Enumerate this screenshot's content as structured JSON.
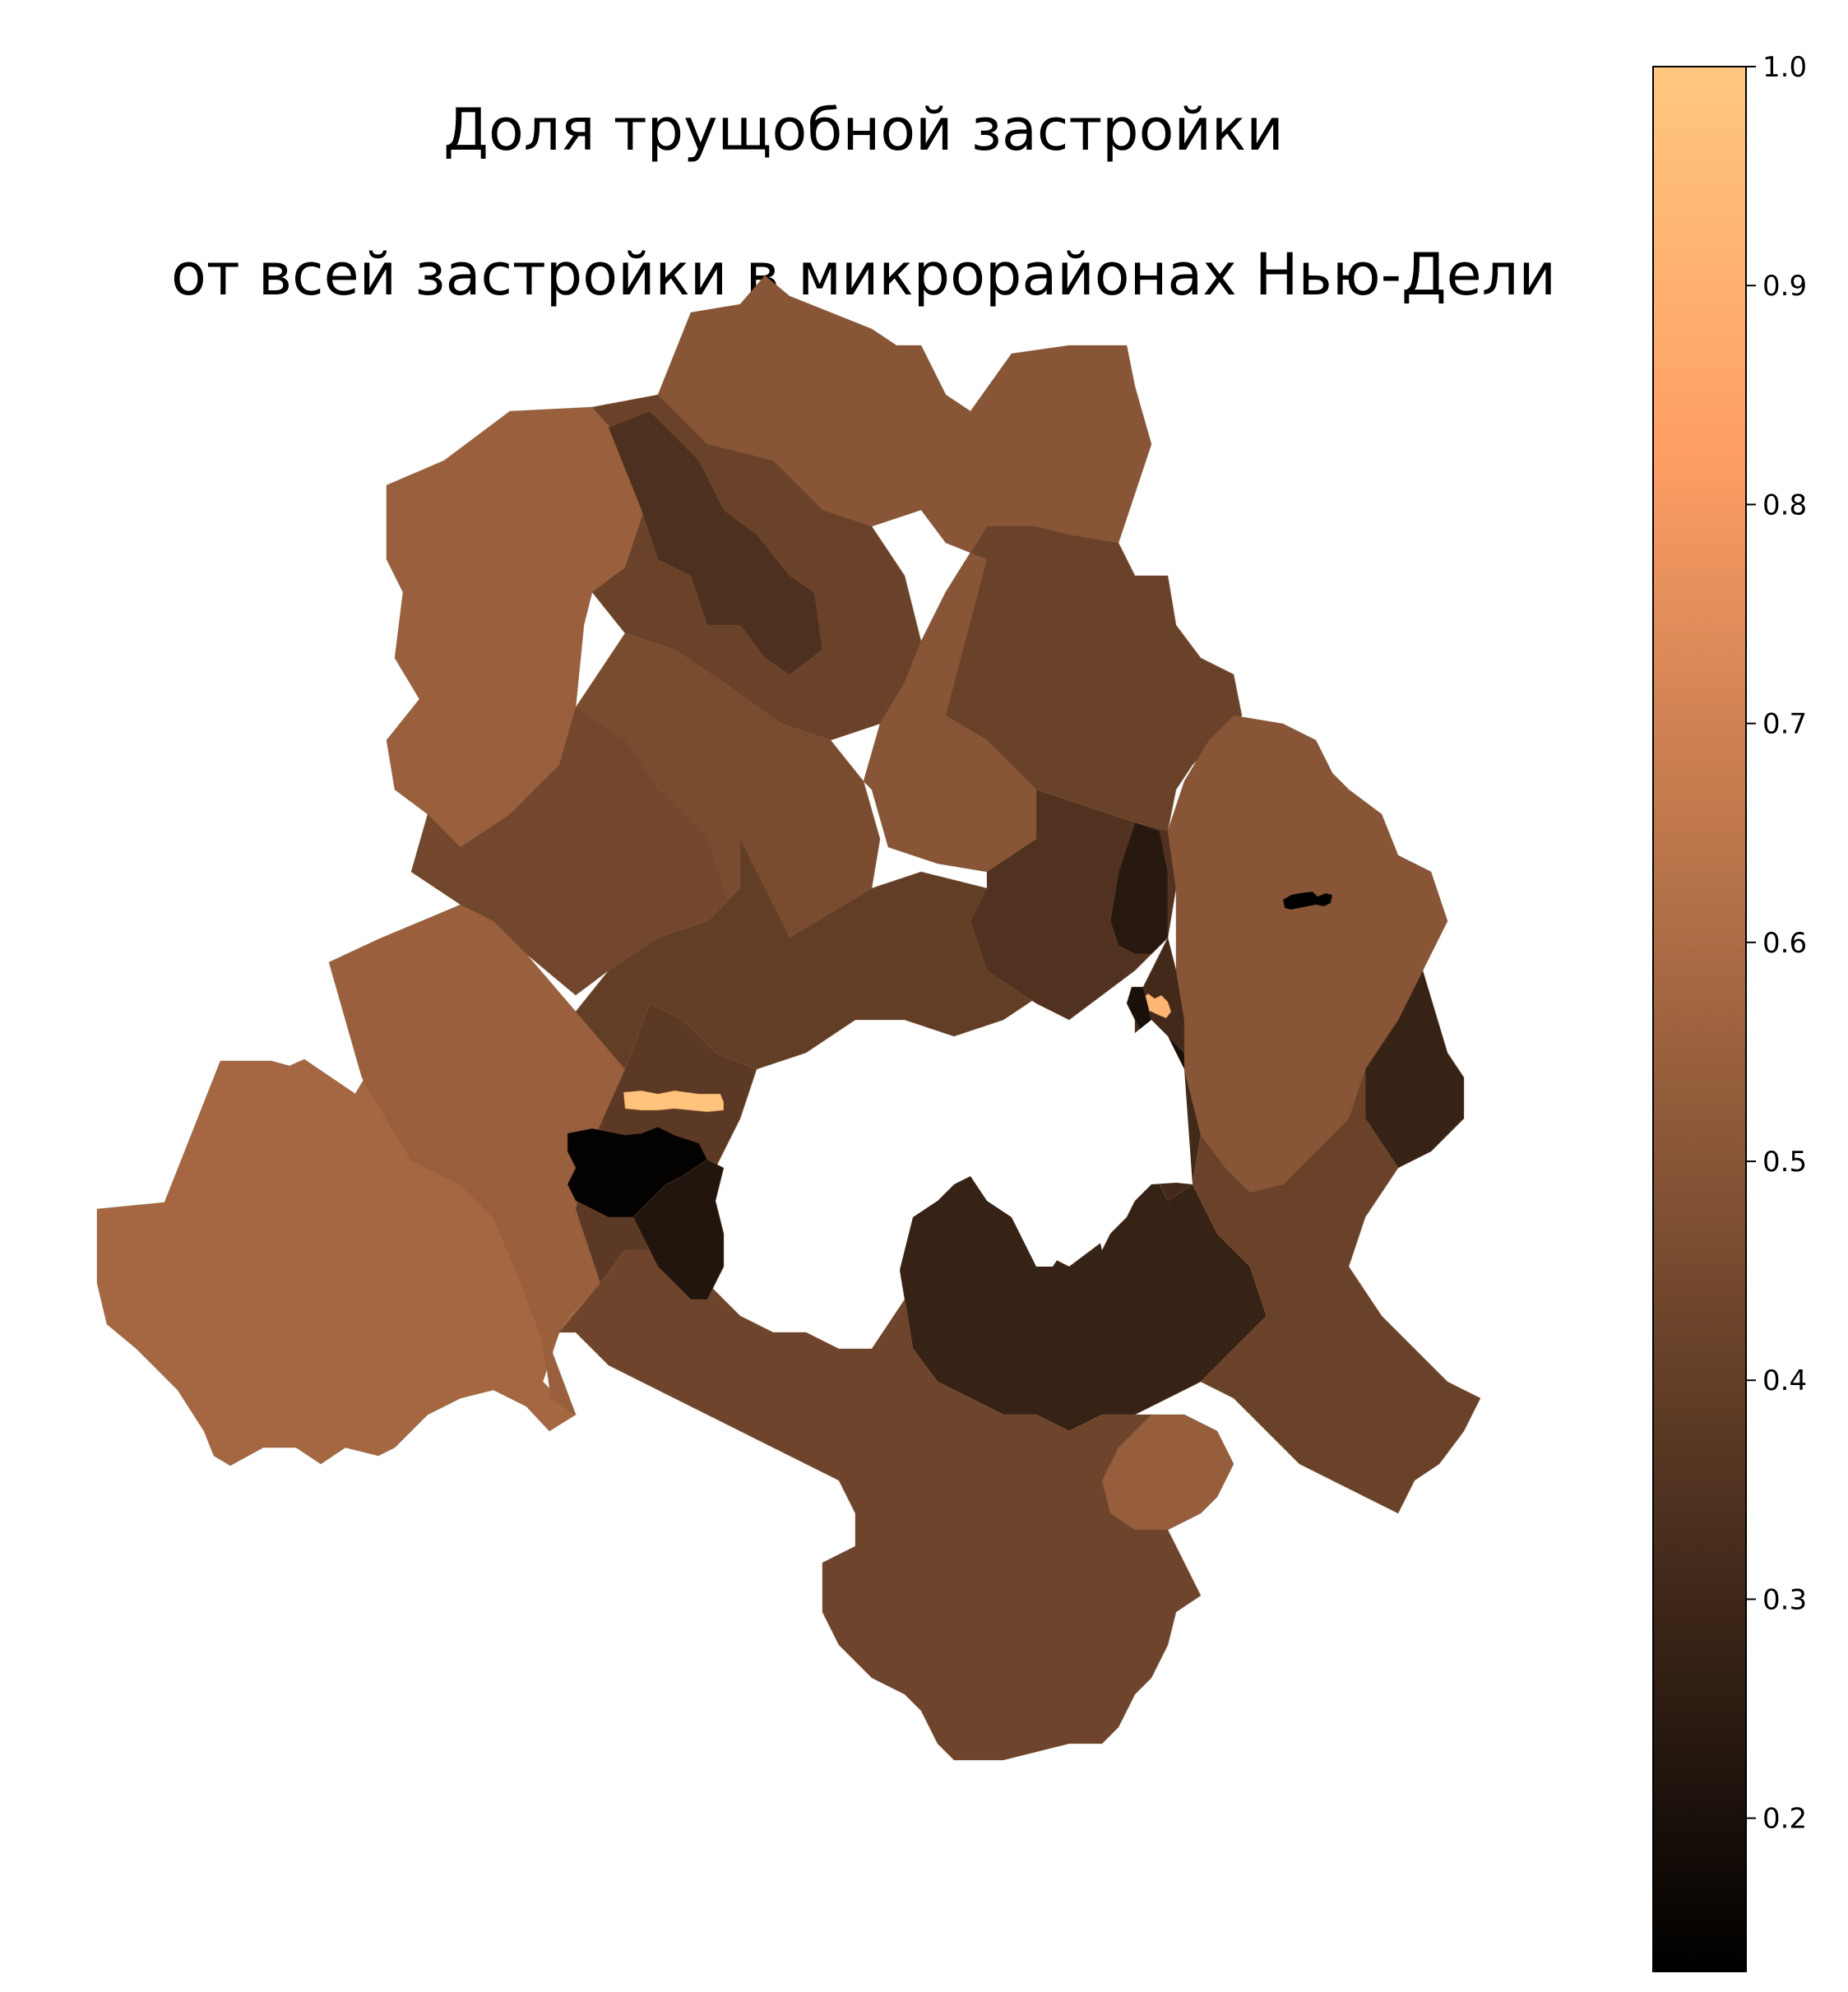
{
  "title_line1": "Доля трущобной застройки",
  "title_line2": "от всей застройки в микрорайонах Нью-Дели",
  "colorbar": {
    "colormap": "copper",
    "min": 0.13,
    "max": 1.0,
    "ticks": [
      "0.2",
      "0.3",
      "0.4",
      "0.5",
      "0.6",
      "0.7",
      "0.8",
      "0.9",
      "1.0"
    ],
    "tick_values": [
      0.2,
      0.3,
      0.4,
      0.5,
      0.6,
      0.7,
      0.8,
      0.9,
      1.0
    ]
  },
  "regions": [
    {
      "id": "south-west",
      "value": 0.58
    },
    {
      "id": "west-upper",
      "value": 0.55
    },
    {
      "id": "north-west",
      "value": 0.55
    },
    {
      "id": "north-tip",
      "value": 0.5
    },
    {
      "id": "north-central",
      "value": 0.42
    },
    {
      "id": "north-dark-strip",
      "value": 0.34
    },
    {
      "id": "north-east",
      "value": 0.42
    },
    {
      "id": "west-central",
      "value": 0.44
    },
    {
      "id": "central-west",
      "value": 0.46
    },
    {
      "id": "central",
      "value": 0.4
    },
    {
      "id": "central-north",
      "value": 0.5
    },
    {
      "id": "central-east",
      "value": 0.35
    },
    {
      "id": "east",
      "value": 0.5
    },
    {
      "id": "east-dark",
      "value": 0.31
    },
    {
      "id": "far-east-dark",
      "value": 0.28
    },
    {
      "id": "south-central",
      "value": 0.38
    },
    {
      "id": "south-dark",
      "value": 0.28
    },
    {
      "id": "south-east",
      "value": 0.42
    },
    {
      "id": "south-east-light",
      "value": 0.54
    },
    {
      "id": "far-south",
      "value": 0.43
    },
    {
      "id": "sw-dark-block",
      "value": 0.14
    },
    {
      "id": "sw-dark-block-2",
      "value": 0.22
    },
    {
      "id": "slum-strip-west",
      "value": 0.98
    },
    {
      "id": "slum-east",
      "value": 0.92
    },
    {
      "id": "black-east",
      "value": 0.13
    },
    {
      "id": "east-black-strip",
      "value": 0.2
    },
    {
      "id": "central-dark-strip",
      "value": 0.24
    }
  ]
}
